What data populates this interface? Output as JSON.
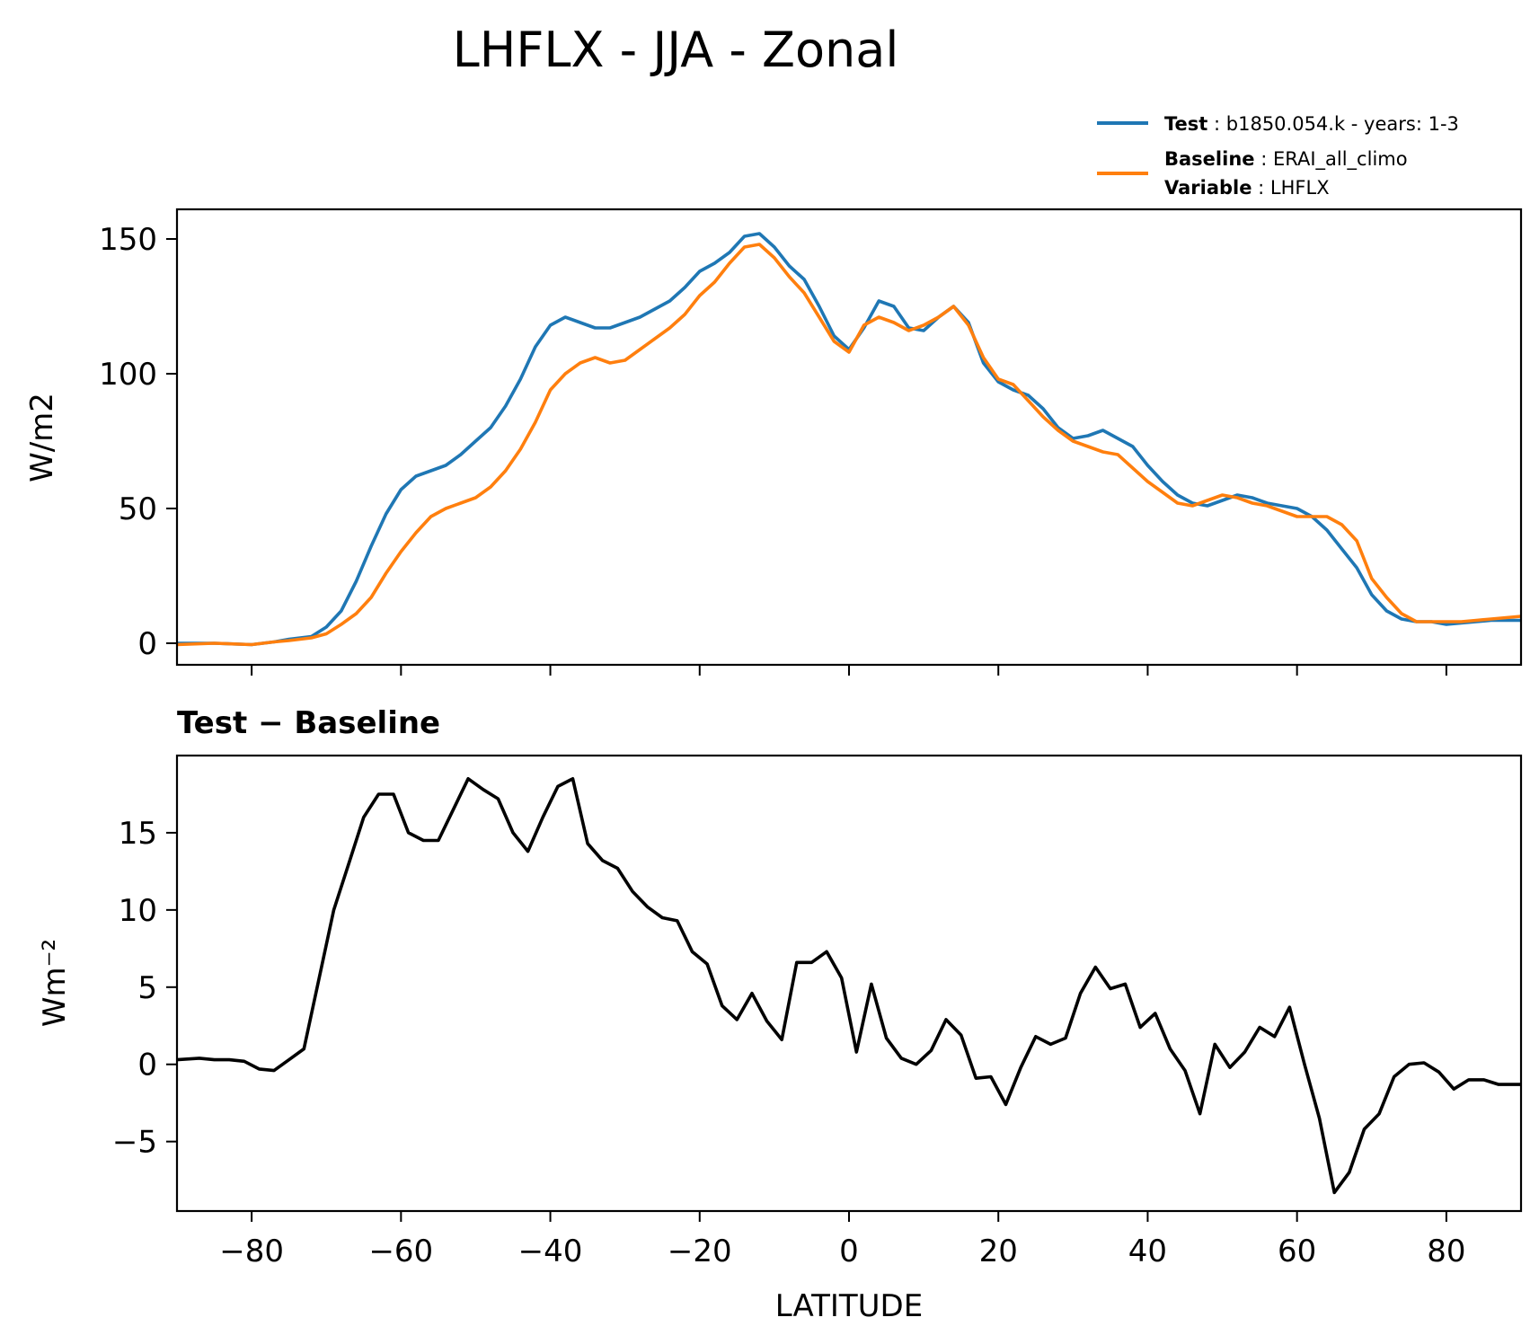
{
  "figure": {
    "title": "LHFLX - JJA - Zonal"
  },
  "legend": {
    "entries": [
      {
        "name": "Test",
        "label": "b1850.054.k - years: 1-3",
        "color": "#1f77b4"
      },
      {
        "name": "Baseline",
        "label": "ERAI_all_climo",
        "color": "#ff7f0e"
      },
      {
        "name": "Variable",
        "label": "LHFLX"
      }
    ]
  },
  "chart_data": [
    {
      "type": "line",
      "xlabel": "",
      "ylabel": "W/m2",
      "xlim": [
        -90,
        90
      ],
      "ylim": [
        -8,
        161
      ],
      "xticks": [
        -80,
        -60,
        -40,
        -20,
        0,
        20,
        40,
        60,
        80
      ],
      "yticks": [
        0,
        50,
        100,
        150
      ],
      "ytick_labels": [
        "0",
        "50",
        "100",
        "150"
      ],
      "legend_position": "top-right, above axes",
      "series": [
        {
          "name": "Test",
          "color": "#1f77b4",
          "x": [
            -90,
            -85,
            -80,
            -77,
            -75,
            -72,
            -70,
            -68,
            -66,
            -64,
            -62,
            -60,
            -58,
            -56,
            -54,
            -52,
            -50,
            -48,
            -46,
            -44,
            -42,
            -40,
            -38,
            -36,
            -34,
            -32,
            -30,
            -28,
            -26,
            -24,
            -22,
            -20,
            -18,
            -16,
            -14,
            -12,
            -10,
            -8,
            -6,
            -4,
            -2,
            0,
            2,
            4,
            6,
            8,
            10,
            12,
            14,
            16,
            18,
            20,
            22,
            24,
            26,
            28,
            30,
            32,
            34,
            36,
            38,
            40,
            42,
            44,
            46,
            48,
            50,
            52,
            54,
            56,
            58,
            60,
            62,
            64,
            66,
            68,
            70,
            72,
            74,
            76,
            78,
            80,
            82,
            84,
            86,
            88,
            90
          ],
          "values": [
            0,
            0,
            -0.5,
            0.5,
            1.5,
            2.5,
            6,
            12,
            23,
            36,
            48,
            57,
            62,
            64,
            66,
            70,
            75,
            80,
            88,
            98,
            110,
            118,
            121,
            119,
            117,
            117,
            119,
            121,
            124,
            127,
            132,
            138,
            141,
            145,
            151,
            152,
            147,
            140,
            135,
            125,
            114,
            109,
            117,
            127,
            125,
            117,
            116,
            121,
            125,
            119,
            104,
            97,
            94,
            92,
            87,
            80,
            76,
            77,
            79,
            76,
            73,
            66,
            60,
            55,
            52,
            51,
            53,
            55,
            54,
            52,
            51,
            50,
            47,
            42,
            35,
            28,
            18,
            12,
            9,
            8,
            8,
            7,
            7.5,
            8,
            8.5,
            8.5,
            8.5
          ]
        },
        {
          "name": "Baseline",
          "color": "#ff7f0e",
          "x": [
            -90,
            -85,
            -80,
            -77,
            -75,
            -72,
            -70,
            -68,
            -66,
            -64,
            -62,
            -60,
            -58,
            -56,
            -54,
            -52,
            -50,
            -48,
            -46,
            -44,
            -42,
            -40,
            -38,
            -36,
            -34,
            -32,
            -30,
            -28,
            -26,
            -24,
            -22,
            -20,
            -18,
            -16,
            -14,
            -12,
            -10,
            -8,
            -6,
            -4,
            -2,
            0,
            2,
            4,
            6,
            8,
            10,
            12,
            14,
            16,
            18,
            20,
            22,
            24,
            26,
            28,
            30,
            32,
            34,
            36,
            38,
            40,
            42,
            44,
            46,
            48,
            50,
            52,
            54,
            56,
            58,
            60,
            62,
            64,
            66,
            68,
            70,
            72,
            74,
            76,
            78,
            80,
            82,
            84,
            86,
            88,
            90
          ],
          "values": [
            -0.5,
            0,
            -0.5,
            0.5,
            1,
            2,
            3.5,
            7,
            11,
            17,
            26,
            34,
            41,
            47,
            50,
            52,
            54,
            58,
            64,
            72,
            82,
            94,
            100,
            104,
            106,
            104,
            105,
            109,
            113,
            117,
            122,
            129,
            134,
            141,
            147,
            148,
            143,
            136,
            130,
            121,
            112,
            108,
            118,
            121,
            119,
            116,
            118,
            121,
            125,
            118,
            106,
            98,
            96,
            90,
            84,
            79,
            75,
            73,
            71,
            70,
            65,
            60,
            56,
            52,
            51,
            53,
            55,
            54,
            52,
            51,
            49,
            47,
            47,
            47,
            44,
            38,
            24,
            17,
            11,
            8,
            8,
            8,
            8,
            8.5,
            9,
            9.5,
            10
          ]
        }
      ]
    },
    {
      "type": "line",
      "title": "Test − Baseline",
      "xlabel": "LATITUDE",
      "ylabel": "Wm⁻²",
      "xlim": [
        -90,
        90
      ],
      "ylim": [
        -9.5,
        20
      ],
      "xticks": [
        -80,
        -60,
        -40,
        -20,
        0,
        20,
        40,
        60,
        80
      ],
      "xtick_labels": [
        "−80",
        "−60",
        "−40",
        "−20",
        "0",
        "20",
        "40",
        "60",
        "80"
      ],
      "yticks": [
        -5,
        0,
        5,
        10,
        15
      ],
      "ytick_labels": [
        "−5",
        "0",
        "5",
        "10",
        "15"
      ],
      "series": [
        {
          "name": "Test − Baseline",
          "color": "#000000",
          "x": [
            -90,
            -87,
            -85,
            -83,
            -81,
            -79,
            -77,
            -75,
            -73,
            -71,
            -69,
            -67,
            -65,
            -63,
            -61,
            -59,
            -57,
            -55,
            -53,
            -51,
            -49,
            -47,
            -45,
            -43,
            -41,
            -39,
            -37,
            -35,
            -33,
            -31,
            -29,
            -27,
            -25,
            -23,
            -21,
            -19,
            -17,
            -15,
            -13,
            -11,
            -9,
            -7,
            -5,
            -3,
            -1,
            1,
            3,
            5,
            7,
            9,
            11,
            13,
            15,
            17,
            19,
            21,
            23,
            25,
            27,
            29,
            31,
            33,
            35,
            37,
            39,
            41,
            43,
            45,
            47,
            49,
            51,
            53,
            55,
            57,
            59,
            61,
            63,
            65,
            67,
            69,
            71,
            73,
            75,
            77,
            79,
            81,
            83,
            85,
            87,
            89,
            90
          ],
          "values": [
            0.3,
            0.4,
            0.3,
            0.3,
            0.2,
            -0.3,
            -0.4,
            0.3,
            1,
            5.5,
            10,
            13,
            16,
            17.5,
            17.5,
            15,
            14.5,
            14.5,
            16.5,
            18.5,
            17.8,
            17.2,
            15,
            13.8,
            16,
            18,
            18.5,
            14.3,
            13.2,
            12.7,
            11.2,
            10.2,
            9.5,
            9.3,
            7.3,
            6.5,
            3.8,
            2.9,
            4.6,
            2.8,
            1.6,
            6.6,
            6.6,
            7.3,
            5.6,
            0.8,
            5.2,
            1.7,
            0.4,
            0,
            0.9,
            2.9,
            1.9,
            -0.9,
            -0.8,
            -2.6,
            -0.2,
            1.8,
            1.3,
            1.7,
            4.6,
            6.3,
            4.9,
            5.2,
            2.4,
            3.3,
            1,
            -0.4,
            -3.2,
            1.3,
            -0.2,
            0.8,
            2.4,
            1.8,
            3.7,
            0,
            -3.5,
            -8.3,
            -7,
            -4.2,
            -3.2,
            -0.8,
            0,
            0.1,
            -0.5,
            -1.6,
            -1,
            -1,
            -1.3,
            -1.3,
            -1.3
          ]
        }
      ]
    }
  ]
}
